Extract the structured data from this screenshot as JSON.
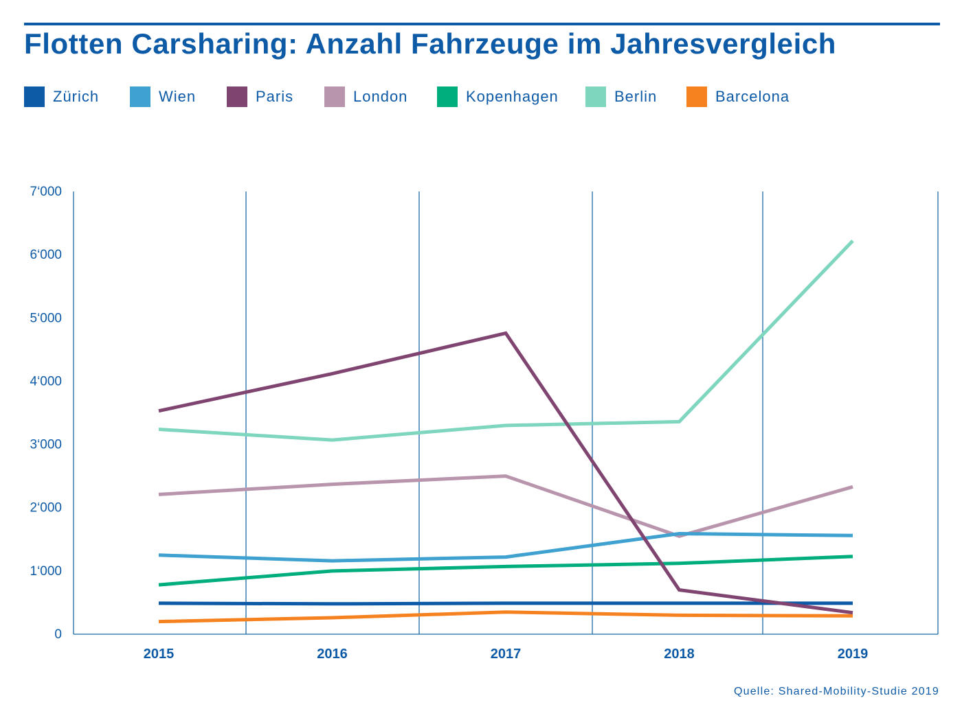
{
  "title": "Flotten Carsharing: Anzahl Fahrzeuge im Jahresvergleich",
  "source": "Quelle: Shared-Mobility-Studie 2019",
  "colors": {
    "text": "#0d5aa7",
    "grid": "#1a6aa8"
  },
  "chart_data": {
    "type": "line",
    "title": "Flotten Carsharing: Anzahl Fahrzeuge im Jahresvergleich",
    "xlabel": "",
    "ylabel": "",
    "x": [
      "2015",
      "2016",
      "2017",
      "2018",
      "2019"
    ],
    "ylim": [
      0,
      7000
    ],
    "y_ticks": [
      0,
      1000,
      2000,
      3000,
      4000,
      5000,
      6000,
      7000
    ],
    "y_tick_labels": [
      "0",
      "1‘000",
      "2‘000",
      "3‘000",
      "4‘000",
      "5‘000",
      "6‘000",
      "7‘000"
    ],
    "grid": "vertical",
    "legend_position": "top-left",
    "series": [
      {
        "name": "Zürich",
        "color": "#0d5aa7",
        "values": [
          490,
          480,
          490,
          490,
          490
        ]
      },
      {
        "name": "Wien",
        "color": "#3ea1cf",
        "values": [
          1250,
          1160,
          1220,
          1590,
          1560
        ]
      },
      {
        "name": "Paris",
        "color": "#7f4570",
        "values": [
          3530,
          4120,
          4760,
          700,
          340
        ]
      },
      {
        "name": "London",
        "color": "#b994ad",
        "values": [
          2210,
          2370,
          2500,
          1550,
          2330
        ]
      },
      {
        "name": "Kopenhagen",
        "color": "#00ad7c",
        "values": [
          780,
          1000,
          1070,
          1120,
          1230
        ]
      },
      {
        "name": "Berlin",
        "color": "#7dd6bd",
        "values": [
          3240,
          3070,
          3300,
          3360,
          6220
        ]
      },
      {
        "name": "Barcelona",
        "color": "#f5821f",
        "values": [
          200,
          260,
          350,
          300,
          290
        ]
      }
    ]
  }
}
